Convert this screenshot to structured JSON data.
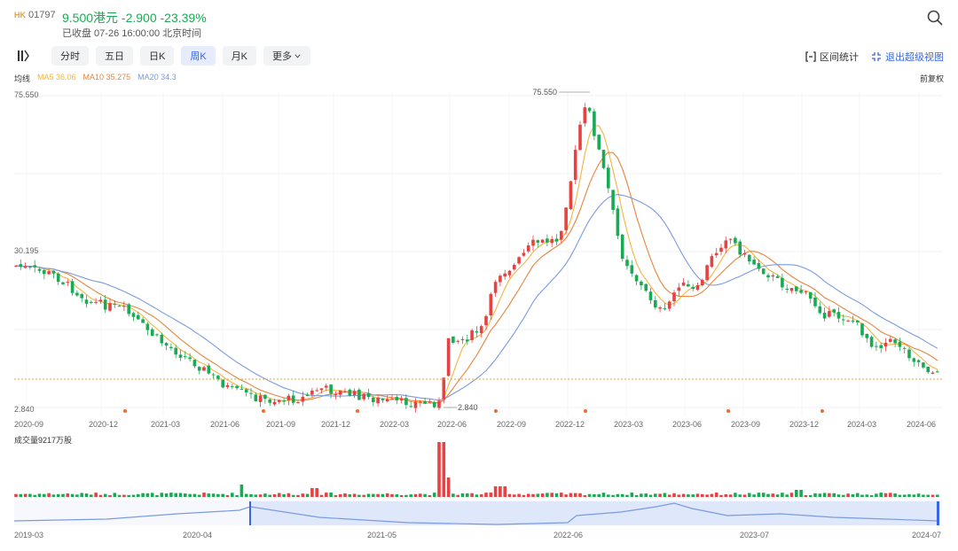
{
  "header": {
    "market": "HK",
    "code": "01797",
    "price_line": "9.500港元 -2.900 -23.39%",
    "status": "已收盘 07-26 16:00:00 北京时间"
  },
  "toolbar": {
    "tabs": [
      {
        "label": "分时",
        "active": false
      },
      {
        "label": "五日",
        "active": false
      },
      {
        "label": "日K",
        "active": false
      },
      {
        "label": "周K",
        "active": true
      },
      {
        "label": "月K",
        "active": false
      },
      {
        "label": "更多",
        "active": false
      }
    ],
    "range_stats": "区间统计",
    "exit_super": "退出超级视图"
  },
  "legend": {
    "label": "均线",
    "ma5": "MA5 36.06",
    "ma10": "MA10 35.275",
    "ma20": "MA20 34.3"
  },
  "adjust_label": "前复权",
  "price_axis": {
    "max_label": "75.550",
    "mid_label": "30.195",
    "min_label": "2.840"
  },
  "markers": {
    "high": "75.550",
    "low": "2.840"
  },
  "x_axis_labels": [
    "2020-09",
    "2020-12",
    "2021-03",
    "2021-06",
    "2021-09",
    "2021-12",
    "2022-03",
    "2022-06",
    "2022-09",
    "2022-12",
    "2023-03",
    "2023-06",
    "2023-09",
    "2023-12",
    "2024-03",
    "2024-06"
  ],
  "volume_label": "成交量9217万股",
  "nav_axis_labels": [
    "2019-03",
    "2020-04",
    "2021-05",
    "2022-06",
    "2023-07",
    "2024-07"
  ],
  "colors": {
    "up": "#e84142",
    "down": "#1aaa55",
    "ma5": "#f5b442",
    "ma10": "#e8843c",
    "ma20": "#7b9be0",
    "accent": "#3a66e0"
  }
}
